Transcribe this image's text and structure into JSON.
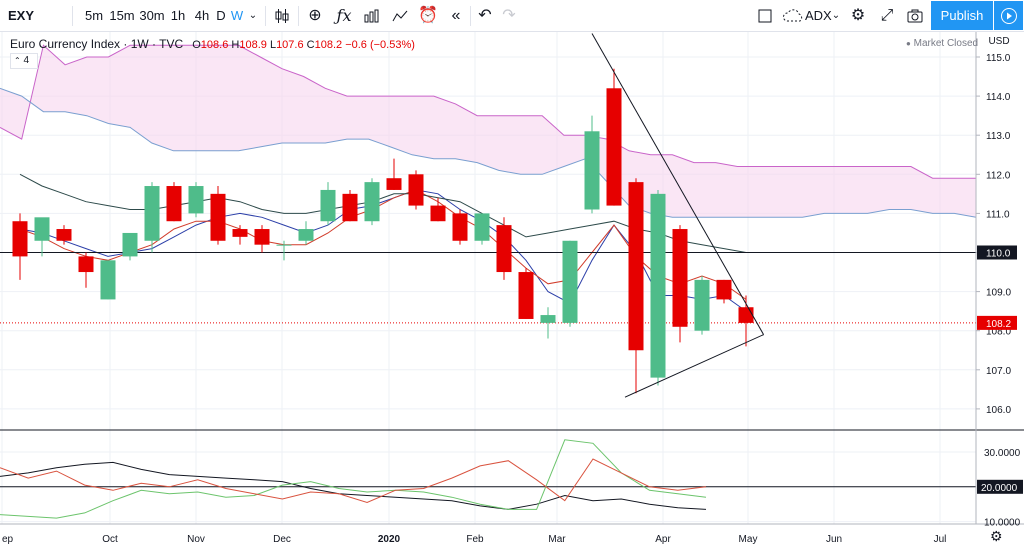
{
  "toolbar": {
    "symbol": "EXY",
    "intervals": [
      "5m",
      "15m",
      "30m",
      "1h",
      "4h",
      "D",
      "W"
    ],
    "active_interval": "W",
    "indicator_label": "ADX",
    "publish_label": "Publish"
  },
  "legend": {
    "title": "Euro Currency Index · 1W · TVC",
    "o_label": "O",
    "o": "108.6",
    "h_label": "H",
    "h": "108.9",
    "l_label": "L",
    "l": "107.6",
    "c_label": "C",
    "c": "108.2",
    "change": "−0.6 (−0.53%)",
    "indicator_count": "4",
    "market_status": "Market Closed"
  },
  "colors": {
    "up": "#4fbc8a",
    "down": "#e60000",
    "cloud": "#f6d5ee",
    "accent": "#2196f3"
  },
  "chart_data": {
    "type": "candlestick",
    "currency": "USD",
    "price_ticks": [
      "115.0",
      "114.0",
      "113.0",
      "112.0",
      "111.0",
      "110.0",
      "109.0",
      "108.0",
      "107.0",
      "106.0"
    ],
    "ylim": [
      105.5,
      115.6
    ],
    "x_labels": [
      "ep",
      "Oct",
      "Nov",
      "Dec",
      "2020",
      "Feb",
      "Mar",
      "Apr",
      "May",
      "Jun",
      "Jul"
    ],
    "horizontal_line": {
      "value": 110.0,
      "label": "110.0"
    },
    "last_price": {
      "value": 108.2,
      "label": "108.2"
    },
    "candles": [
      {
        "o": 110.8,
        "h": 111.0,
        "l": 109.3,
        "c": 109.9
      },
      {
        "o": 110.3,
        "h": 110.8,
        "l": 109.9,
        "c": 110.9
      },
      {
        "o": 110.6,
        "h": 110.7,
        "l": 110.2,
        "c": 110.3
      },
      {
        "o": 109.9,
        "h": 110.0,
        "l": 109.1,
        "c": 109.5
      },
      {
        "o": 108.8,
        "h": 109.7,
        "l": 108.8,
        "c": 109.8
      },
      {
        "o": 109.9,
        "h": 110.5,
        "l": 109.8,
        "c": 110.5
      },
      {
        "o": 110.3,
        "h": 111.8,
        "l": 110.0,
        "c": 111.7
      },
      {
        "o": 111.7,
        "h": 111.8,
        "l": 110.8,
        "c": 110.8
      },
      {
        "o": 111.0,
        "h": 111.8,
        "l": 110.9,
        "c": 111.7
      },
      {
        "o": 111.5,
        "h": 111.7,
        "l": 110.2,
        "c": 110.3
      },
      {
        "o": 110.6,
        "h": 110.7,
        "l": 110.2,
        "c": 110.4
      },
      {
        "o": 110.6,
        "h": 110.7,
        "l": 110.0,
        "c": 110.2
      },
      {
        "o": 110.2,
        "h": 110.3,
        "l": 109.8,
        "c": 110.2
      },
      {
        "o": 110.3,
        "h": 110.8,
        "l": 110.2,
        "c": 110.6
      },
      {
        "o": 110.8,
        "h": 111.8,
        "l": 110.7,
        "c": 111.6
      },
      {
        "o": 111.5,
        "h": 111.6,
        "l": 110.8,
        "c": 110.8
      },
      {
        "o": 110.8,
        "h": 111.9,
        "l": 110.7,
        "c": 111.8
      },
      {
        "o": 111.9,
        "h": 112.4,
        "l": 111.6,
        "c": 111.6
      },
      {
        "o": 112.0,
        "h": 112.1,
        "l": 111.1,
        "c": 111.2
      },
      {
        "o": 111.2,
        "h": 111.4,
        "l": 110.8,
        "c": 110.8
      },
      {
        "o": 111.0,
        "h": 111.1,
        "l": 110.2,
        "c": 110.3
      },
      {
        "o": 110.3,
        "h": 111.0,
        "l": 110.2,
        "c": 111.0
      },
      {
        "o": 110.7,
        "h": 110.9,
        "l": 109.3,
        "c": 109.5
      },
      {
        "o": 109.5,
        "h": 109.6,
        "l": 108.3,
        "c": 108.3
      },
      {
        "o": 108.2,
        "h": 108.6,
        "l": 107.8,
        "c": 108.4
      },
      {
        "o": 108.2,
        "h": 110.3,
        "l": 108.1,
        "c": 110.3
      },
      {
        "o": 111.1,
        "h": 113.5,
        "l": 111.0,
        "c": 113.1
      },
      {
        "o": 114.2,
        "h": 114.7,
        "l": 111.2,
        "c": 111.2
      },
      {
        "o": 111.8,
        "h": 111.9,
        "l": 106.4,
        "c": 107.5
      },
      {
        "o": 106.8,
        "h": 111.6,
        "l": 106.6,
        "c": 111.5
      },
      {
        "o": 110.6,
        "h": 110.7,
        "l": 107.7,
        "c": 108.1
      },
      {
        "o": 108.0,
        "h": 109.4,
        "l": 107.9,
        "c": 109.3
      },
      {
        "o": 109.3,
        "h": 109.3,
        "l": 108.7,
        "c": 108.8
      },
      {
        "o": 108.6,
        "h": 108.9,
        "l": 107.6,
        "c": 108.2
      }
    ],
    "cloud_upper": [
      113.2,
      112.9,
      115.3,
      114.8,
      115.0,
      115.0,
      115.3,
      115.3,
      115.3,
      115.3,
      115.3,
      115.3,
      115.0,
      114.7,
      114.5,
      114.2,
      114.0,
      114.0,
      114.0,
      114.0,
      114.0,
      113.8,
      113.5,
      113.5,
      113.5,
      113.5,
      113.0,
      113.0,
      112.9,
      112.6,
      112.5,
      112.5,
      112.3,
      112.3,
      112.2,
      112.2,
      112.2,
      112.2,
      112.2,
      112.2,
      112.2,
      112.2,
      112.2,
      111.9,
      111.9,
      111.9
    ],
    "cloud_lower": [
      114.2,
      114.0,
      113.6,
      113.6,
      113.5,
      113.3,
      113.2,
      112.8,
      112.6,
      112.6,
      112.6,
      112.6,
      112.7,
      112.8,
      112.8,
      112.8,
      112.9,
      112.9,
      112.7,
      112.5,
      112.4,
      112.4,
      112.3,
      112.1,
      112.0,
      112.0,
      112.2,
      112.4,
      111.8,
      111.2,
      111.0,
      110.9,
      110.9,
      110.9,
      110.9,
      110.9,
      110.9,
      110.9,
      111.0,
      111.0,
      111.0,
      111.1,
      111.1,
      111.0,
      111.0,
      110.9
    ],
    "series": [
      {
        "values": [
          110.6,
          110.5,
          110.3,
          110.1,
          109.9,
          110.0,
          110.1,
          110.4,
          110.7,
          110.9,
          111.0,
          110.9,
          110.7,
          110.5,
          110.7,
          111.1,
          111.2,
          111.4,
          111.6,
          111.5,
          111.1,
          110.8,
          110.4,
          109.8,
          109.0,
          108.7,
          109.8,
          110.7,
          110.0,
          108.9,
          108.9,
          108.8,
          108.9,
          108.5
        ]
      },
      {
        "values": [
          110.6,
          110.4,
          110.1,
          109.9,
          109.8,
          110.0,
          110.2,
          110.6,
          110.8,
          110.8,
          110.6,
          110.3,
          110.2,
          110.2,
          110.5,
          110.9,
          111.1,
          111.4,
          111.6,
          111.3,
          110.9,
          110.6,
          110.1,
          109.6,
          109.2,
          109.3,
          110.0,
          110.7,
          109.9,
          109.4,
          109.2,
          109.4,
          109.2,
          108.8
        ]
      },
      {
        "values": [
          112.0,
          111.7,
          111.5,
          111.3,
          111.2,
          111.1,
          111.1,
          111.2,
          111.3,
          111.4,
          111.3,
          111.1,
          111.0,
          111.0,
          111.1,
          111.2,
          111.3,
          111.5,
          111.5,
          111.4,
          111.3,
          111.0,
          110.7,
          110.4,
          110.5,
          110.6,
          110.7,
          110.8,
          110.6,
          110.5,
          110.3,
          110.2,
          110.1,
          110.0
        ]
      }
    ],
    "trendlines": [
      {
        "x1": 26.0,
        "y1": 115.6,
        "x2": 33.8,
        "y2": 107.9
      },
      {
        "x1": 27.5,
        "y1": 106.3,
        "x2": 33.8,
        "y2": 107.9
      }
    ],
    "adx_panel": {
      "indicator": "ADX",
      "ticks": [
        "30.0000",
        "20.0000",
        "10.0000"
      ],
      "ylim": [
        9.0,
        36.0
      ],
      "level": {
        "value": 20.0,
        "label": "20.0000"
      },
      "series": [
        {
          "name": "ADX",
          "values": [
            23.0,
            24.0,
            25.5,
            26.5,
            27.0,
            25.0,
            23.5,
            23.0,
            22.5,
            22.0,
            21.5,
            19.5,
            18.0,
            17.5,
            17.0,
            16.5,
            16.0,
            14.5,
            13.5,
            15.0,
            17.5,
            16.0,
            16.5,
            15.0,
            14.0,
            13.5
          ]
        },
        {
          "name": "+DI",
          "values": [
            12.0,
            11.5,
            11.0,
            12.5,
            16.0,
            19.0,
            18.0,
            18.5,
            17.0,
            17.5,
            20.5,
            21.5,
            19.5,
            18.5,
            19.0,
            18.5,
            17.0,
            15.0,
            13.5,
            13.5,
            33.5,
            32.5,
            24.0,
            19.0,
            18.0,
            17.0
          ]
        },
        {
          "name": "-DI",
          "values": [
            25.5,
            22.5,
            24.5,
            20.5,
            19.0,
            21.0,
            20.0,
            22.0,
            19.5,
            18.0,
            16.5,
            18.5,
            18.0,
            15.5,
            19.0,
            19.5,
            22.5,
            26.0,
            27.5,
            22.0,
            16.0,
            28.0,
            24.0,
            20.0,
            19.0,
            20.0
          ]
        }
      ]
    }
  }
}
